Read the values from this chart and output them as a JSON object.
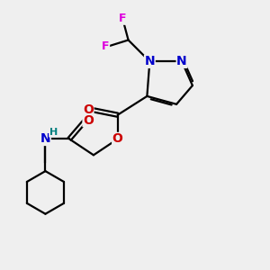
{
  "background_color": "#efefef",
  "bond_color": "#000000",
  "atom_colors": {
    "N": "#0000cc",
    "O": "#cc0000",
    "F": "#dd00dd",
    "H": "#008080",
    "C": "#000000"
  },
  "font_size": 10,
  "fig_size": [
    3.0,
    3.0
  ],
  "dpi": 100,
  "lw": 1.6
}
